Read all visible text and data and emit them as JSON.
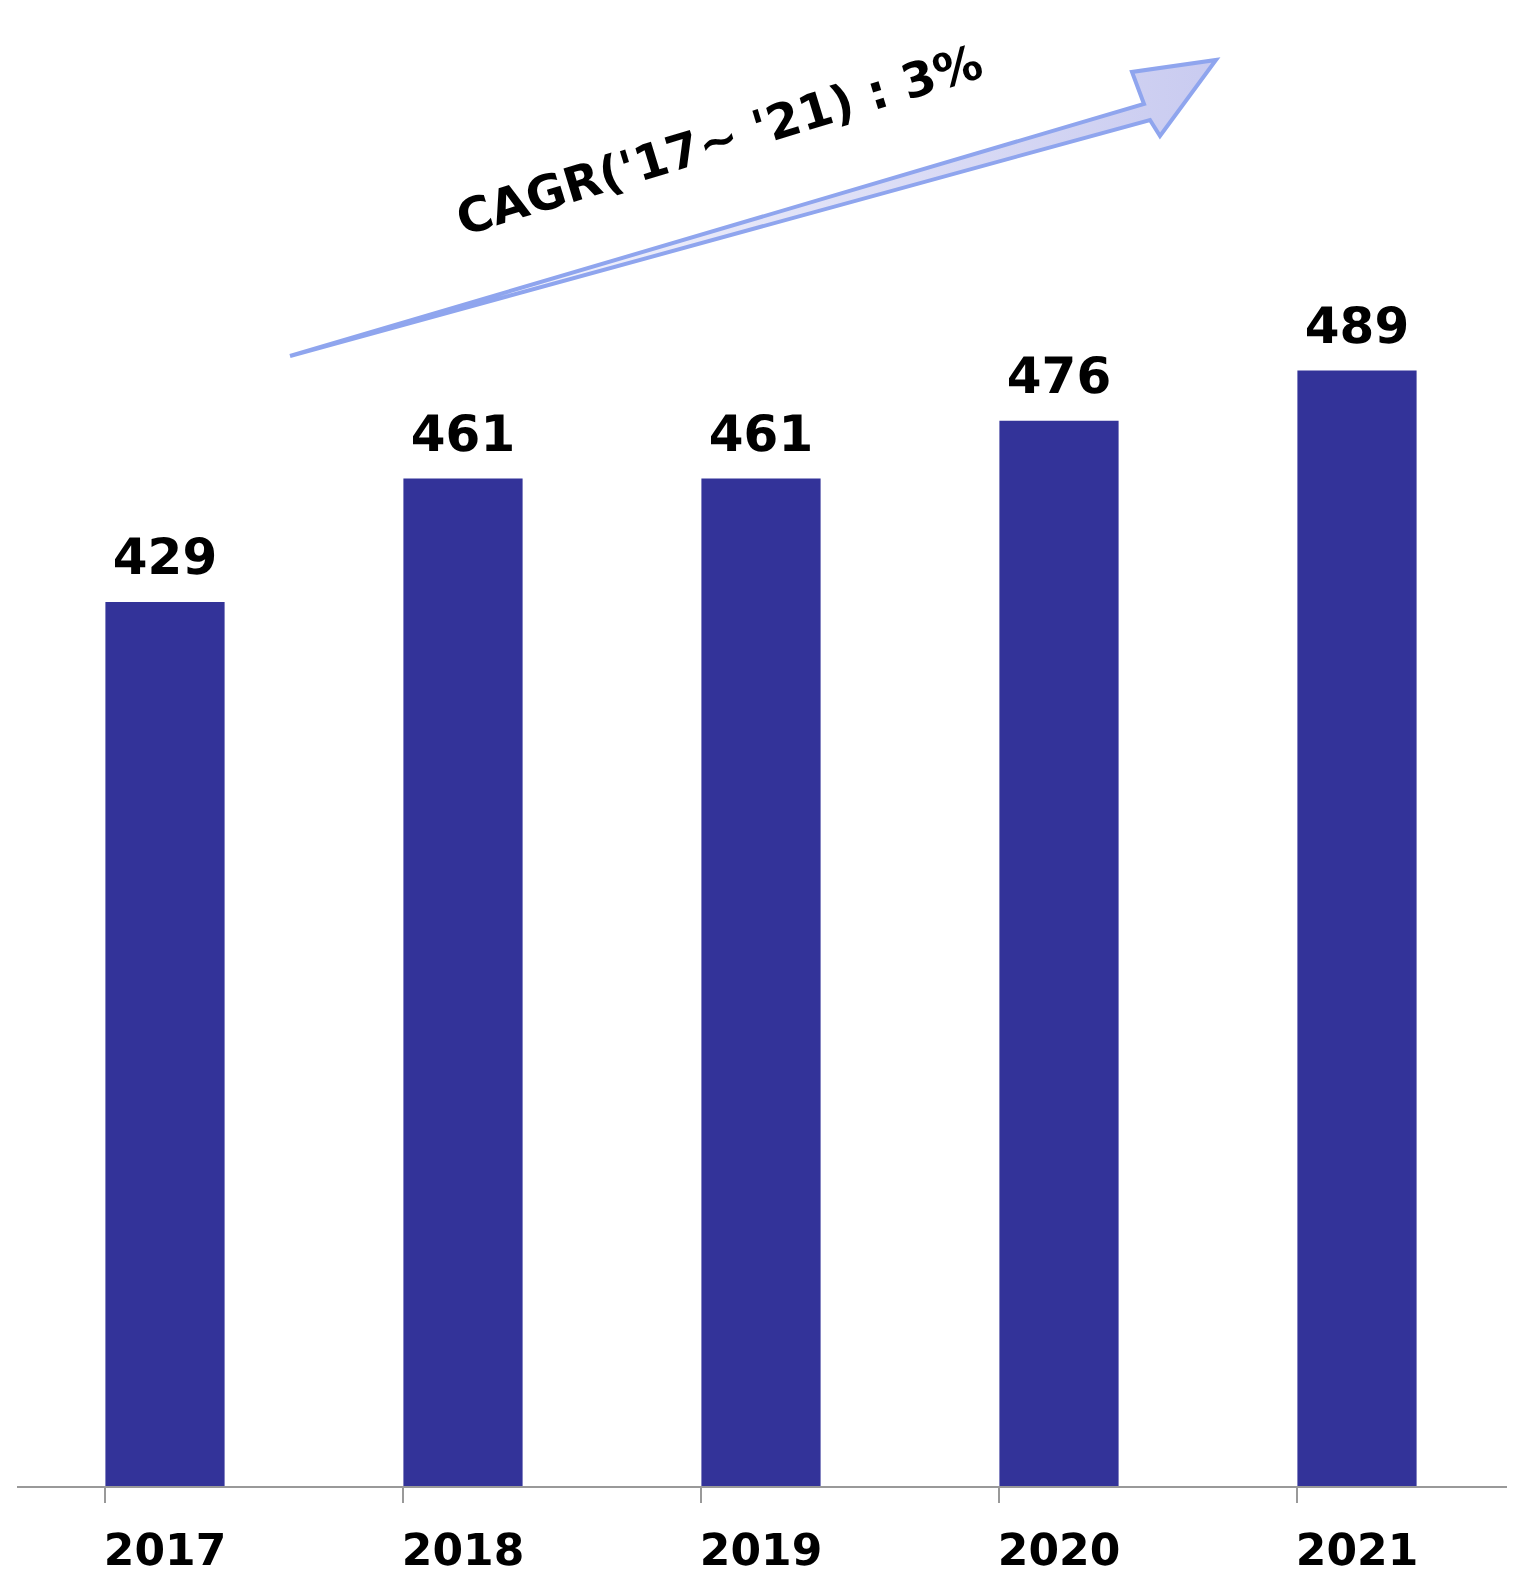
{
  "chart_data": {
    "type": "bar",
    "categories": [
      "2017",
      "2018",
      "2019",
      "2020",
      "2021"
    ],
    "values": [
      429,
      461,
      461,
      476,
      489
    ],
    "color": "#333399",
    "ylim": [
      200,
      585
    ],
    "data_labels": true,
    "tick_labels": "x",
    "grid": false,
    "annotations": [
      "CAGR('17~ '21) : 3%"
    ]
  }
}
